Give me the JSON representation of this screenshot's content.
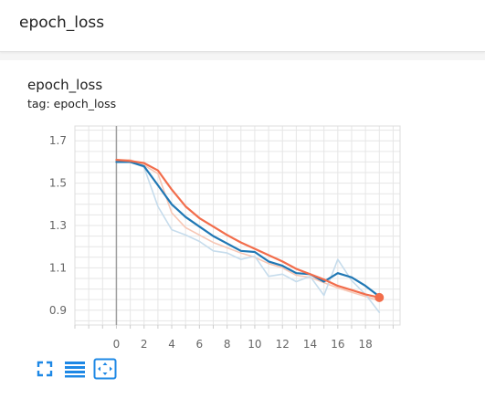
{
  "header": {
    "title": "epoch_loss"
  },
  "chart": {
    "title": "epoch_loss",
    "tag": "tag: epoch_loss"
  },
  "colors": {
    "smoothed_run_a": "#f26d4b",
    "raw_run_a": "#f7c7b5",
    "smoothed_run_b": "#1f77b4",
    "raw_run_b": "#c6dcec",
    "grid": "#e6e6e6",
    "axis": "#9e9e9e",
    "toolbar_icon": "#1e88e5"
  },
  "toolbar": {
    "icons": [
      "fullscreen-icon",
      "data-table-icon",
      "fit-domain-icon"
    ]
  },
  "chart_data": {
    "type": "line",
    "title": "",
    "xlabel": "",
    "ylabel": "",
    "xlim": [
      -3,
      20.5
    ],
    "ylim": [
      0.83,
      1.77
    ],
    "x_ticks": [
      0,
      2,
      4,
      6,
      8,
      10,
      12,
      14,
      16,
      18
    ],
    "y_ticks": [
      0.9,
      1.1,
      1.3,
      1.5,
      1.7
    ],
    "y_tick_labels": [
      "0.9",
      "1.1",
      "1.3",
      "1.5",
      "1.7"
    ],
    "grid": true,
    "x": [
      0,
      1,
      2,
      3,
      4,
      5,
      6,
      7,
      8,
      9,
      10,
      11,
      12,
      13,
      14,
      15,
      16,
      17,
      18,
      19
    ],
    "series": [
      {
        "key": "raw_run_a",
        "values": [
          1.61,
          1.61,
          1.585,
          1.545,
          1.36,
          1.29,
          1.255,
          1.22,
          1.195,
          1.17,
          1.15,
          1.12,
          1.1,
          1.065,
          1.055,
          1.03,
          1.005,
          0.985,
          0.965,
          0.945
        ],
        "emphasis": "raw"
      },
      {
        "key": "raw_run_b",
        "values": [
          1.6,
          1.6,
          1.575,
          1.39,
          1.28,
          1.255,
          1.225,
          1.18,
          1.17,
          1.14,
          1.155,
          1.06,
          1.07,
          1.035,
          1.06,
          0.97,
          1.14,
          1.04,
          0.975,
          0.89
        ],
        "emphasis": "raw"
      },
      {
        "key": "smoothed_run_b",
        "values": [
          1.6,
          1.6,
          1.58,
          1.49,
          1.4,
          1.34,
          1.295,
          1.25,
          1.215,
          1.18,
          1.175,
          1.13,
          1.11,
          1.075,
          1.07,
          1.035,
          1.075,
          1.055,
          1.015,
          0.965
        ],
        "emphasis": "smoothed"
      },
      {
        "key": "smoothed_run_a",
        "values": [
          1.61,
          1.605,
          1.595,
          1.56,
          1.47,
          1.39,
          1.335,
          1.295,
          1.255,
          1.22,
          1.19,
          1.16,
          1.13,
          1.095,
          1.07,
          1.045,
          1.015,
          0.995,
          0.975,
          0.96
        ],
        "emphasis": "smoothed",
        "endpoint_marker": true
      }
    ]
  }
}
